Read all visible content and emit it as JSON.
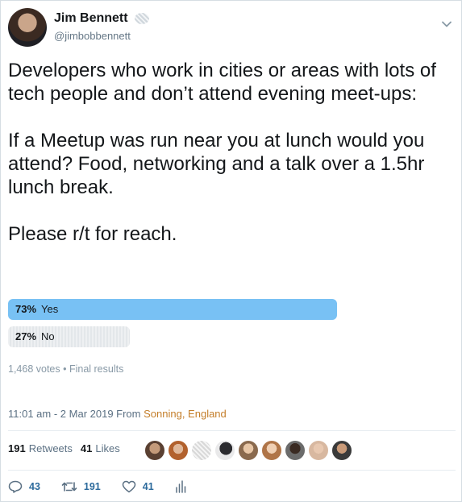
{
  "user": {
    "display_name": "Jim Bennett",
    "handle": "@jimbobbennett"
  },
  "tweet": {
    "text": "Developers who work in cities or areas with lots of tech people and don’t attend evening meet-ups:\n\nIf a Meetup was run near you at lunch would you attend? Food, networking and a talk over a 1.5hr lunch break.\n\nPlease r/t for reach."
  },
  "poll": {
    "options": [
      {
        "percent_label": "73%",
        "label": "Yes",
        "percent": 73,
        "winner": true
      },
      {
        "percent_label": "27%",
        "label": "No",
        "percent": 27,
        "winner": false
      }
    ],
    "meta": "1,468 votes • Final results"
  },
  "timestamp": {
    "time_date": "11:01 am - 2 Mar 2019 From",
    "location": "Sonning, England"
  },
  "engagement": {
    "retweets_count": "191",
    "retweets_label": "Retweets",
    "likes_count": "41",
    "likes_label": "Likes"
  },
  "actions": {
    "replies": "43",
    "retweets": "191",
    "likes": "41"
  },
  "icons": {
    "reply": "reply-icon",
    "retweet": "retweet-icon",
    "like": "heart-icon",
    "analytics": "analytics-icon",
    "more": "chevron-down-icon",
    "verified": "verified-badge-icon"
  },
  "colors": {
    "poll_winner": "#78c1f4",
    "location_link": "#c47e2a",
    "secondary_text": "#657786"
  }
}
